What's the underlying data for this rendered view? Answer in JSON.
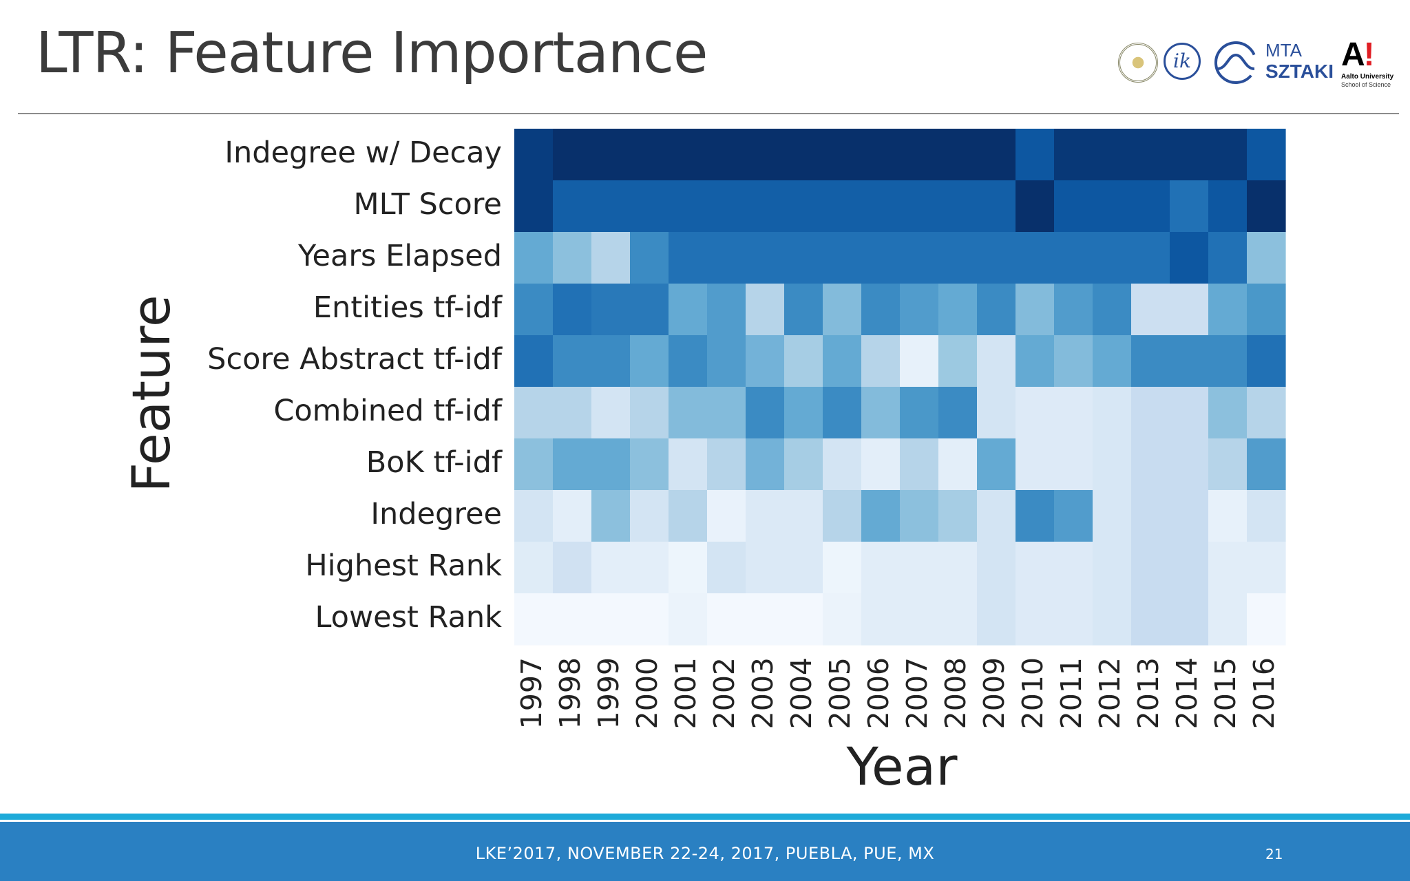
{
  "slide": {
    "title": "LTR: Feature Importance",
    "footer": "LKE’2017, NOVEMBER 22-24, 2017, PUEBLA, PUE, MX",
    "page_number": "21"
  },
  "logos": {
    "mta": "MTA",
    "sztaki": "SZTAKI",
    "aalto_mark": "A",
    "aalto_bang": "!",
    "aalto_line1": "Aalto University",
    "aalto_line2": "School of Science",
    "ik": "ik"
  },
  "chart_data": {
    "type": "heatmap",
    "xlabel": "Year",
    "ylabel": "Feature",
    "colormap": "Blues",
    "color_range": [
      0,
      1
    ],
    "x": [
      "1997",
      "1998",
      "1999",
      "2000",
      "2001",
      "2002",
      "2003",
      "2004",
      "2005",
      "2006",
      "2007",
      "2008",
      "2009",
      "2010",
      "2011",
      "2012",
      "2013",
      "2014",
      "2015",
      "2016"
    ],
    "y": [
      "Indegree w/ Decay",
      "MLT Score",
      "Years Elapsed",
      "Entities tf-idf",
      "Score Abstract tf-idf",
      "Combined tf-idf",
      "BoK tf-idf",
      "Indegree",
      "Highest Rank",
      "Lowest Rank"
    ],
    "values": [
      [
        0.95,
        1.0,
        1.0,
        1.0,
        1.0,
        1.0,
        1.0,
        1.0,
        1.0,
        1.0,
        1.0,
        1.0,
        1.0,
        0.85,
        0.97,
        0.97,
        0.97,
        0.97,
        0.97,
        0.85
      ],
      [
        0.95,
        0.82,
        0.82,
        0.82,
        0.82,
        0.82,
        0.82,
        0.82,
        0.82,
        0.82,
        0.82,
        0.82,
        0.82,
        1.0,
        0.85,
        0.85,
        0.85,
        0.75,
        0.85,
        1.0
      ],
      [
        0.52,
        0.42,
        0.3,
        0.65,
        0.75,
        0.75,
        0.75,
        0.75,
        0.75,
        0.75,
        0.75,
        0.75,
        0.75,
        0.75,
        0.75,
        0.75,
        0.75,
        0.85,
        0.75,
        0.42
      ],
      [
        0.65,
        0.75,
        0.72,
        0.72,
        0.52,
        0.58,
        0.3,
        0.65,
        0.44,
        0.65,
        0.58,
        0.52,
        0.65,
        0.44,
        0.58,
        0.65,
        0.22,
        0.22,
        0.52,
        0.6
      ],
      [
        0.75,
        0.65,
        0.65,
        0.52,
        0.65,
        0.58,
        0.48,
        0.35,
        0.52,
        0.3,
        0.08,
        0.38,
        0.18,
        0.52,
        0.44,
        0.52,
        0.65,
        0.65,
        0.65,
        0.75
      ],
      [
        0.3,
        0.3,
        0.18,
        0.3,
        0.44,
        0.44,
        0.65,
        0.52,
        0.65,
        0.44,
        0.6,
        0.65,
        0.18,
        0.13,
        0.13,
        0.16,
        0.24,
        0.24,
        0.42,
        0.3
      ],
      [
        0.42,
        0.52,
        0.52,
        0.42,
        0.18,
        0.3,
        0.48,
        0.35,
        0.18,
        0.1,
        0.3,
        0.1,
        0.52,
        0.13,
        0.13,
        0.16,
        0.24,
        0.24,
        0.3,
        0.58
      ],
      [
        0.18,
        0.1,
        0.42,
        0.18,
        0.3,
        0.07,
        0.14,
        0.14,
        0.3,
        0.52,
        0.42,
        0.35,
        0.18,
        0.65,
        0.58,
        0.16,
        0.24,
        0.24,
        0.08,
        0.18
      ],
      [
        0.12,
        0.2,
        0.1,
        0.1,
        0.05,
        0.18,
        0.14,
        0.14,
        0.05,
        0.11,
        0.11,
        0.11,
        0.18,
        0.13,
        0.13,
        0.16,
        0.24,
        0.24,
        0.11,
        0.11
      ],
      [
        0.02,
        0.02,
        0.02,
        0.02,
        0.06,
        0.02,
        0.02,
        0.02,
        0.06,
        0.11,
        0.11,
        0.11,
        0.18,
        0.13,
        0.13,
        0.16,
        0.24,
        0.24,
        0.11,
        0.02
      ]
    ]
  }
}
